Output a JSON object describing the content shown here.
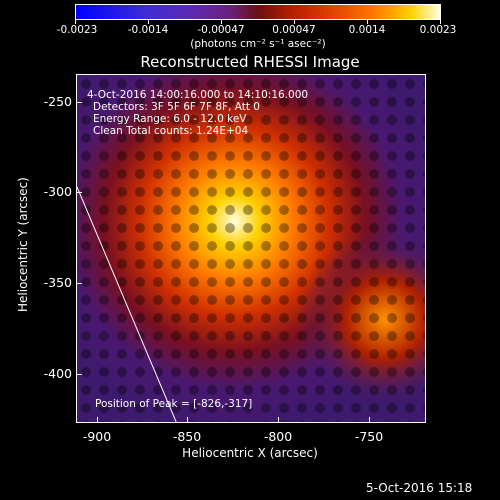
{
  "colorbar": {
    "labels": [
      "-0.0023",
      "-0.0014",
      "-0.00047",
      "0.00047",
      "0.0014",
      "0.0023"
    ],
    "units": "(photons cm⁻² s⁻¹ asec⁻²)"
  },
  "title": "Reconstructed RHESSI Image",
  "annotations": {
    "time_range": "4-Oct-2016 14:00:16.000 to 14:10:16.000",
    "detectors": "Detectors: 3F 5F 6F 7F 8F, Att 0",
    "energy": "Energy Range: 6.0 - 12.0 keV",
    "clean": "Clean    Total counts: 1.24E+04",
    "peak": "Position of Peak = [-826,-317]"
  },
  "axes": {
    "x_title": "Heliocentric X (arcsec)",
    "y_title": "Heliocentric Y (arcsec)",
    "x_ticks": [
      "-900",
      "-850",
      "-800",
      "-750"
    ],
    "y_ticks": [
      "-250",
      "-300",
      "-350",
      "-400"
    ]
  },
  "timestamp": "5-Oct-2016 15:18",
  "colors": {
    "background": "#000000",
    "low": "#0000ff",
    "mid": "#6a2080",
    "high": "#ffffe0"
  }
}
